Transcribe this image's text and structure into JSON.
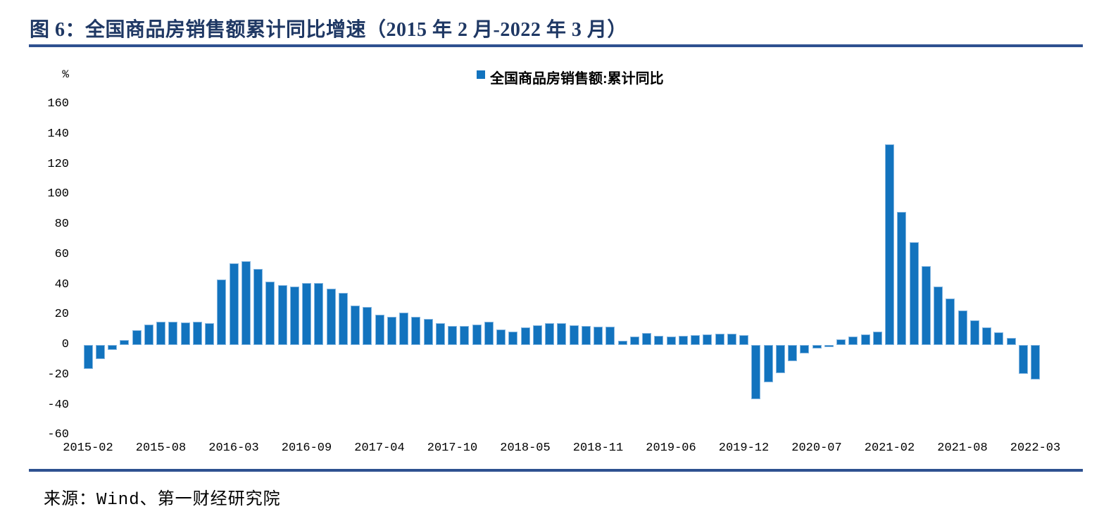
{
  "header": {
    "title": "图 6：全国商品房销售额累计同比增速（2015 年 2 月-2022 年 3 月）"
  },
  "footer": {
    "source": "来源：Wind、第一财经研究院"
  },
  "colors": {
    "title_color": "#1f3864",
    "rule_color": "#2e5190",
    "bar_fill": "#1273be",
    "bar_border": "#85b6e0"
  },
  "chart_data": {
    "type": "bar",
    "title": "全国商品房销售额累计同比增速（2015 年 2 月-2022 年 3 月）",
    "legend": [
      "全国商品房销售额:累计同比"
    ],
    "legend_position": "top-center",
    "unit_label": "%",
    "xlabel": "",
    "ylabel": "%",
    "ylim": [
      -60,
      160
    ],
    "grid": false,
    "yticks": [
      160,
      140,
      120,
      100,
      80,
      60,
      40,
      20,
      0,
      -20,
      -40,
      -60
    ],
    "xtick_every": 6,
    "xtick_labels": [
      "2015-02",
      "2015-08",
      "2016-03",
      "2016-09",
      "2017-04",
      "2017-10",
      "2018-05",
      "2018-11",
      "2019-06",
      "2019-12",
      "2020-07",
      "2021-02",
      "2021-08",
      "2022-03"
    ],
    "categories": [
      "2015-02",
      "2015-03",
      "2015-04",
      "2015-05",
      "2015-06",
      "2015-07",
      "2015-08",
      "2015-09",
      "2015-10",
      "2015-11",
      "2015-12",
      "2016-02",
      "2016-03",
      "2016-04",
      "2016-05",
      "2016-06",
      "2016-07",
      "2016-08",
      "2016-09",
      "2016-10",
      "2016-11",
      "2016-12",
      "2017-02",
      "2017-03",
      "2017-04",
      "2017-05",
      "2017-06",
      "2017-07",
      "2017-08",
      "2017-09",
      "2017-10",
      "2017-11",
      "2017-12",
      "2018-02",
      "2018-03",
      "2018-04",
      "2018-05",
      "2018-06",
      "2018-07",
      "2018-08",
      "2018-09",
      "2018-10",
      "2018-11",
      "2018-12",
      "2019-02",
      "2019-03",
      "2019-04",
      "2019-05",
      "2019-06",
      "2019-07",
      "2019-08",
      "2019-09",
      "2019-10",
      "2019-11",
      "2019-12",
      "2020-02",
      "2020-03",
      "2020-04",
      "2020-05",
      "2020-06",
      "2020-07",
      "2020-08",
      "2020-09",
      "2020-10",
      "2020-11",
      "2020-12",
      "2021-02",
      "2021-03",
      "2021-04",
      "2021-05",
      "2021-06",
      "2021-07",
      "2021-08",
      "2021-09",
      "2021-10",
      "2021-11",
      "2021-12",
      "2022-02",
      "2022-03"
    ],
    "values": [
      -15.8,
      -9.3,
      -3.1,
      3.1,
      10.0,
      13.4,
      15.3,
      15.3,
      14.9,
      15.6,
      14.4,
      43.6,
      54.1,
      55.9,
      50.7,
      42.1,
      39.8,
      38.7,
      41.3,
      41.2,
      37.5,
      34.8,
      26.0,
      25.1,
      20.1,
      18.6,
      21.5,
      18.9,
      17.2,
      14.6,
      12.6,
      12.7,
      13.7,
      15.3,
      10.4,
      9.0,
      11.8,
      13.2,
      14.4,
      14.5,
      13.3,
      12.5,
      12.1,
      12.2,
      2.8,
      5.6,
      8.1,
      6.1,
      5.6,
      6.2,
      6.7,
      7.1,
      7.3,
      7.3,
      6.5,
      -35.9,
      -24.7,
      -18.6,
      -10.6,
      -5.4,
      -2.1,
      -1.6,
      3.7,
      5.8,
      7.2,
      8.7,
      133.4,
      88.5,
      68.2,
      52.4,
      38.9,
      30.7,
      22.8,
      16.6,
      11.8,
      8.5,
      4.8,
      -19.3,
      -22.7
    ]
  }
}
